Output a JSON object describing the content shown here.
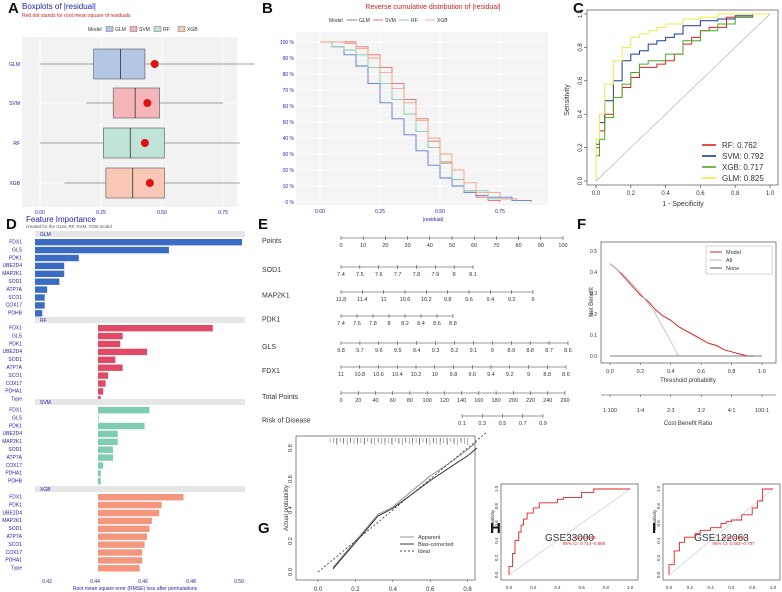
{
  "panel_labels": [
    "A",
    "B",
    "C",
    "D",
    "E",
    "F",
    "G",
    "H",
    "I"
  ],
  "chart_data": [
    {
      "id": "A",
      "type": "box",
      "title": "Boxplots of |residual|",
      "subtitle": "Red dot stands for root mean square of residuals",
      "legend_title": "Model",
      "legend": [
        "GLM",
        "SVM",
        "RF",
        "XGB"
      ],
      "colors": {
        "GLM": "#b3c6e5",
        "SVM": "#f4b6b8",
        "RF": "#bfe3d6",
        "XGB": "#f8c7b5"
      },
      "categories": [
        "GLM",
        "SVM",
        "RF",
        "XGB"
      ],
      "boxes": [
        {
          "name": "GLM",
          "min": 0.0,
          "q1": 0.22,
          "median": 0.33,
          "q3": 0.43,
          "max": 0.88,
          "rmse": 0.47
        },
        {
          "name": "SVM",
          "min": 0.19,
          "q1": 0.3,
          "median": 0.39,
          "q3": 0.49,
          "max": 0.75,
          "rmse": 0.44
        },
        {
          "name": "RF",
          "min": 0.0,
          "q1": 0.26,
          "median": 0.37,
          "q3": 0.51,
          "max": 0.82,
          "rmse": 0.43
        },
        {
          "name": "XGB",
          "min": 0.1,
          "q1": 0.27,
          "median": 0.38,
          "q3": 0.51,
          "max": 0.82,
          "rmse": 0.45
        }
      ],
      "xticks": [
        "0.00",
        "0.25",
        "0.50",
        "0.75"
      ],
      "xlim": [
        0,
        0.9
      ]
    },
    {
      "id": "B",
      "type": "line",
      "title": "Reverse cumulative distribution of |residual|",
      "legend_title": "Model",
      "legend": [
        "GLM",
        "SVM",
        "RF",
        "XGB"
      ],
      "colors": {
        "GLM": "#5b7ad6",
        "SVM": "#e86a72",
        "RF": "#88c7b0",
        "XGB": "#f2a585"
      },
      "xlabel": "|residual|",
      "xticks": [
        "0.00",
        "0.25",
        "0.50",
        "0.75"
      ],
      "yticks": [
        "0 %",
        "10 %",
        "20 %",
        "30 %",
        "40 %",
        "50 %",
        "60 %",
        "70 %",
        "80 %",
        "90 %",
        "100 %"
      ],
      "xlim": [
        0,
        0.9
      ],
      "ylim": [
        0,
        100
      ],
      "series": [
        {
          "name": "GLM",
          "x": [
            0,
            0.05,
            0.1,
            0.15,
            0.2,
            0.25,
            0.3,
            0.35,
            0.4,
            0.45,
            0.5,
            0.55,
            0.6,
            0.65,
            0.7,
            0.8,
            0.88
          ],
          "y": [
            100,
            97,
            92,
            85,
            74,
            62,
            52,
            42,
            32,
            23,
            15,
            10,
            6,
            4,
            3,
            1,
            0
          ]
        },
        {
          "name": "SVM",
          "x": [
            0,
            0.1,
            0.15,
            0.2,
            0.25,
            0.3,
            0.35,
            0.4,
            0.45,
            0.5,
            0.55,
            0.6,
            0.65,
            0.7,
            0.75
          ],
          "y": [
            100,
            100,
            97,
            92,
            84,
            74,
            64,
            52,
            38,
            25,
            14,
            7,
            3,
            1,
            0
          ]
        },
        {
          "name": "RF",
          "x": [
            0,
            0.05,
            0.1,
            0.15,
            0.2,
            0.25,
            0.3,
            0.35,
            0.4,
            0.45,
            0.5,
            0.55,
            0.6,
            0.7,
            0.82
          ],
          "y": [
            100,
            97,
            95,
            92,
            84,
            74,
            64,
            55,
            44,
            34,
            24,
            14,
            7,
            2,
            0
          ]
        },
        {
          "name": "XGB",
          "x": [
            0,
            0.1,
            0.15,
            0.2,
            0.25,
            0.3,
            0.35,
            0.4,
            0.45,
            0.5,
            0.55,
            0.6,
            0.65,
            0.75,
            0.82
          ],
          "y": [
            100,
            99,
            96,
            90,
            81,
            71,
            62,
            51,
            40,
            30,
            20,
            12,
            6,
            2,
            0
          ]
        }
      ]
    },
    {
      "id": "C",
      "type": "line",
      "title": "",
      "xlabel": "1 - Specificity",
      "ylabel": "Sensitivity",
      "xticks": [
        "0.0",
        "0.2",
        "0.4",
        "0.6",
        "0.8",
        "1.0"
      ],
      "yticks": [
        "0.0",
        "0.2",
        "0.4",
        "0.6",
        "0.8",
        "1.0"
      ],
      "legend": [
        "RF: 0.762",
        "SVM: 0.792",
        "XGB: 0.717",
        "GLM: 0.825"
      ],
      "colors": {
        "RF": "#dd2222",
        "SVM": "#1a3a9a",
        "XGB": "#44aa22",
        "GLM": "#f2e84a"
      },
      "series": [
        {
          "name": "RF",
          "x": [
            0,
            0.02,
            0.05,
            0.1,
            0.15,
            0.2,
            0.25,
            0.3,
            0.35,
            0.4,
            0.45,
            0.5,
            0.55,
            0.6,
            0.65,
            0.75,
            0.9,
            1
          ],
          "y": [
            0,
            0.2,
            0.3,
            0.4,
            0.5,
            0.56,
            0.62,
            0.68,
            0.68,
            0.7,
            0.72,
            0.76,
            0.82,
            0.86,
            0.9,
            0.92,
            0.98,
            1
          ]
        },
        {
          "name": "SVM",
          "x": [
            0,
            0.02,
            0.05,
            0.1,
            0.15,
            0.2,
            0.25,
            0.3,
            0.35,
            0.4,
            0.45,
            0.5,
            0.6,
            0.7,
            0.8,
            0.9,
            1
          ],
          "y": [
            0,
            0.22,
            0.35,
            0.48,
            0.6,
            0.72,
            0.76,
            0.78,
            0.82,
            0.84,
            0.86,
            0.88,
            0.93,
            0.96,
            0.97,
            0.99,
            1
          ]
        },
        {
          "name": "XGB",
          "x": [
            0,
            0.02,
            0.05,
            0.1,
            0.15,
            0.2,
            0.25,
            0.3,
            0.4,
            0.5,
            0.6,
            0.7,
            0.8,
            0.9,
            1
          ],
          "y": [
            0,
            0.15,
            0.25,
            0.38,
            0.5,
            0.58,
            0.65,
            0.7,
            0.72,
            0.76,
            0.84,
            0.9,
            0.94,
            0.98,
            1
          ]
        },
        {
          "name": "GLM",
          "x": [
            0,
            0.02,
            0.05,
            0.1,
            0.15,
            0.2,
            0.25,
            0.3,
            0.35,
            0.4,
            0.5,
            0.6,
            0.7,
            0.8,
            0.9,
            1
          ],
          "y": [
            0,
            0.25,
            0.4,
            0.58,
            0.72,
            0.8,
            0.86,
            0.88,
            0.9,
            0.92,
            0.94,
            0.97,
            0.98,
            1,
            1,
            1
          ]
        },
        {
          "name": "diag",
          "x": [
            0,
            1
          ],
          "y": [
            0,
            1
          ]
        }
      ]
    },
    {
      "id": "D",
      "type": "bar",
      "title": "Feature Importance",
      "subtitle": "created for the GLM, RF, SVM, XGB model",
      "xlabel": "Root mean square error (RMSE) loss after permutations",
      "xticks": [
        "0.42",
        "0.44",
        "0.46",
        "0.48",
        "0.50"
      ],
      "xlim": [
        0.415,
        0.5
      ],
      "panels": [
        {
          "name": "GLM",
          "color": "#3b6cc4",
          "categories": [
            "FDX1",
            "GLS",
            "PDK1",
            "UBE2D4",
            "MAP2K1",
            "SOD1",
            "ATP7A",
            "SCO1",
            "COX17",
            "PDHB"
          ],
          "values": [
            0.5,
            0.47,
            0.433,
            0.427,
            0.427,
            0.425,
            0.42,
            0.419,
            0.419,
            0.418
          ]
        },
        {
          "name": "RF",
          "color": "#e04a66",
          "categories": [
            "FDX1",
            "GLS",
            "PDK1",
            "UBE2D4",
            "SOD1",
            "ATP7A",
            "SCO1",
            "COX17",
            "PDHA1",
            "Type"
          ],
          "values": [
            0.488,
            0.451,
            0.45,
            0.461,
            0.448,
            0.451,
            0.445,
            0.444,
            0.443,
            0.442
          ]
        },
        {
          "name": "SVM",
          "color": "#7fcdb1",
          "categories": [
            "FDX1",
            "GLS",
            "PDK1",
            "UBE2D4",
            "MAP2K1",
            "SOD1",
            "ATP7A",
            "COX17",
            "PDHA1",
            "PDHB"
          ],
          "values": [
            0.462,
            0.441,
            0.46,
            0.449,
            0.449,
            0.447,
            0.447,
            0.443,
            0.442,
            0.442
          ]
        },
        {
          "name": "XGB",
          "color": "#f4957d",
          "categories": [
            "FDX1",
            "PDK1",
            "UBE2D4",
            "MAP2K1",
            "SOD1",
            "ATP7A",
            "SCO1",
            "COX17",
            "PDHA1",
            "Type"
          ],
          "values": [
            0.476,
            0.467,
            0.466,
            0.463,
            0.462,
            0.461,
            0.46,
            0.459,
            0.459,
            0.458
          ]
        }
      ]
    },
    {
      "id": "E",
      "type": "nomogram",
      "rows": [
        {
          "name": "Points",
          "ticks": [
            "0",
            "10",
            "20",
            "30",
            "40",
            "50",
            "60",
            "70",
            "80",
            "90",
            "100"
          ]
        },
        {
          "name": "SOD1",
          "ticks": [
            "7.4",
            "7.5",
            "7.6",
            "7.7",
            "7.8",
            "7.9",
            "8",
            "8.1"
          ]
        },
        {
          "name": "MAP2K1",
          "ticks": [
            "11.8",
            "11.4",
            "11",
            "10.6",
            "10.2",
            "9.8",
            "9.6",
            "9.4",
            "9.2",
            "9"
          ]
        },
        {
          "name": "PDK1",
          "ticks": [
            "7.4",
            "7.6",
            "7.8",
            "8",
            "8.2",
            "8.4",
            "8.6",
            "8.8"
          ]
        },
        {
          "name": "GLS",
          "ticks": [
            "9.8",
            "9.7",
            "9.6",
            "9.5",
            "9.4",
            "9.3",
            "9.2",
            "9.1",
            "9",
            "8.9",
            "8.8",
            "8.7",
            "8.6"
          ]
        },
        {
          "name": "FDX1",
          "ticks": [
            "11",
            "10.8",
            "10.6",
            "10.4",
            "10.2",
            "10",
            "9.8",
            "9.6",
            "9.4",
            "9.2",
            "9",
            "8.8",
            "8.6"
          ]
        },
        {
          "name": "Total Points",
          "ticks": [
            "0",
            "20",
            "40",
            "60",
            "80",
            "100",
            "120",
            "140",
            "160",
            "180",
            "200",
            "220",
            "240",
            "260"
          ]
        },
        {
          "name": "Risk of Disease",
          "ticks": [
            "0.1",
            "0.3",
            "0.5",
            "0.7",
            "0.9"
          ]
        }
      ]
    },
    {
      "id": "F",
      "type": "line",
      "ylabel": "Net Benefit",
      "xlabel": "Threshold probability",
      "x2label": "Cost Benefit Ratio",
      "xticks": [
        "0.0",
        "0.2",
        "0.4",
        "0.6",
        "0.8",
        "1.0"
      ],
      "x2ticks": [
        "1:100",
        "1:4",
        "2:3",
        "3:2",
        "4:1",
        "100:1"
      ],
      "yticks": [
        "0.0",
        "0.1",
        "0.2",
        "0.3",
        "0.4",
        "0.5"
      ],
      "legend": [
        "Model",
        "All",
        "None"
      ],
      "colors": {
        "Model": "#dd2222",
        "All": "#bbbbbb",
        "None": "#555555"
      },
      "series": [
        {
          "name": "Model",
          "x": [
            0,
            0.05,
            0.1,
            0.15,
            0.2,
            0.25,
            0.3,
            0.35,
            0.4,
            0.45,
            0.5,
            0.55,
            0.6,
            0.65,
            0.7,
            0.75,
            0.8,
            0.85,
            0.9,
            0.95
          ],
          "y": [
            0.44,
            0.41,
            0.37,
            0.33,
            0.29,
            0.26,
            0.22,
            0.19,
            0.17,
            0.14,
            0.12,
            0.1,
            0.08,
            0.06,
            0.05,
            0.03,
            0.02,
            0.01,
            0.0,
            0.0
          ]
        },
        {
          "name": "All",
          "x": [
            0,
            0.1,
            0.2,
            0.3,
            0.4,
            0.45
          ],
          "y": [
            0.44,
            0.38,
            0.3,
            0.2,
            0.07,
            0.0
          ]
        },
        {
          "name": "None",
          "x": [
            0,
            1
          ],
          "y": [
            0,
            0
          ]
        }
      ]
    },
    {
      "id": "G",
      "type": "line",
      "ylabel": "Actual probability",
      "xticks": [
        "0.0",
        "0.2",
        "0.4",
        "0.6",
        "0.8"
      ],
      "yticks": [
        "0.0",
        "0.2",
        "0.4",
        "0.6",
        "0.8"
      ],
      "legend": [
        "Apparent",
        "Bias-corrected",
        "Ideal"
      ],
      "series": [
        {
          "name": "Apparent",
          "x": [
            0.08,
            0.15,
            0.25,
            0.32,
            0.4,
            0.5,
            0.6,
            0.7,
            0.8,
            0.85
          ],
          "y": [
            0.03,
            0.13,
            0.27,
            0.37,
            0.42,
            0.52,
            0.62,
            0.7,
            0.79,
            0.84
          ]
        },
        {
          "name": "Bias-corrected",
          "x": [
            0.08,
            0.15,
            0.25,
            0.32,
            0.4,
            0.5,
            0.6,
            0.7,
            0.8,
            0.85
          ],
          "y": [
            0.02,
            0.12,
            0.26,
            0.36,
            0.41,
            0.5,
            0.59,
            0.67,
            0.75,
            0.8
          ]
        },
        {
          "name": "Ideal",
          "x": [
            0,
            0.9
          ],
          "y": [
            0,
            0.9
          ]
        }
      ]
    },
    {
      "id": "H",
      "type": "line",
      "title": "GSE33000",
      "ylabel": "Sensitivity",
      "annotation": [
        "AUC: 0.805",
        "95% CI: 0.714–0.888"
      ],
      "xticks": [
        "0.0",
        "0.2",
        "0.4",
        "0.6",
        "0.8",
        "1.0"
      ],
      "yticks": [
        "0.0",
        "0.2",
        "0.4",
        "0.6",
        "0.8",
        "1.0"
      ],
      "series": [
        {
          "name": "ROC",
          "x": [
            0,
            0.03,
            0.05,
            0.08,
            0.1,
            0.12,
            0.15,
            0.2,
            0.25,
            0.3,
            0.4,
            0.45,
            0.5,
            0.6,
            0.7,
            0.8,
            0.9,
            1
          ],
          "y": [
            0,
            0.1,
            0.25,
            0.4,
            0.5,
            0.58,
            0.65,
            0.72,
            0.78,
            0.84,
            0.84,
            0.88,
            0.9,
            0.9,
            0.96,
            1,
            1,
            1
          ]
        },
        {
          "name": "diag",
          "x": [
            0,
            1
          ],
          "y": [
            0,
            1
          ]
        }
      ]
    },
    {
      "id": "I",
      "type": "line",
      "title": "GSE122063",
      "ylabel": "Sensitivity",
      "annotation": [
        "AUC: 0.605",
        "95% CI: 0.502–0.707"
      ],
      "xticks": [
        "0.0",
        "0.2",
        "0.4",
        "0.6",
        "0.8",
        "1.0"
      ],
      "yticks": [
        "0.0",
        "0.2",
        "0.4",
        "0.6",
        "0.8",
        "1.0"
      ],
      "series": [
        {
          "name": "ROC",
          "x": [
            0,
            0.05,
            0.1,
            0.15,
            0.2,
            0.25,
            0.3,
            0.4,
            0.5,
            0.55,
            0.6,
            0.7,
            0.8,
            0.85,
            0.9,
            1
          ],
          "y": [
            0,
            0.12,
            0.28,
            0.38,
            0.44,
            0.44,
            0.48,
            0.52,
            0.55,
            0.6,
            0.62,
            0.64,
            0.7,
            0.78,
            0.86,
            1
          ]
        },
        {
          "name": "diag",
          "x": [
            0,
            1
          ],
          "y": [
            0,
            1
          ]
        }
      ]
    }
  ]
}
